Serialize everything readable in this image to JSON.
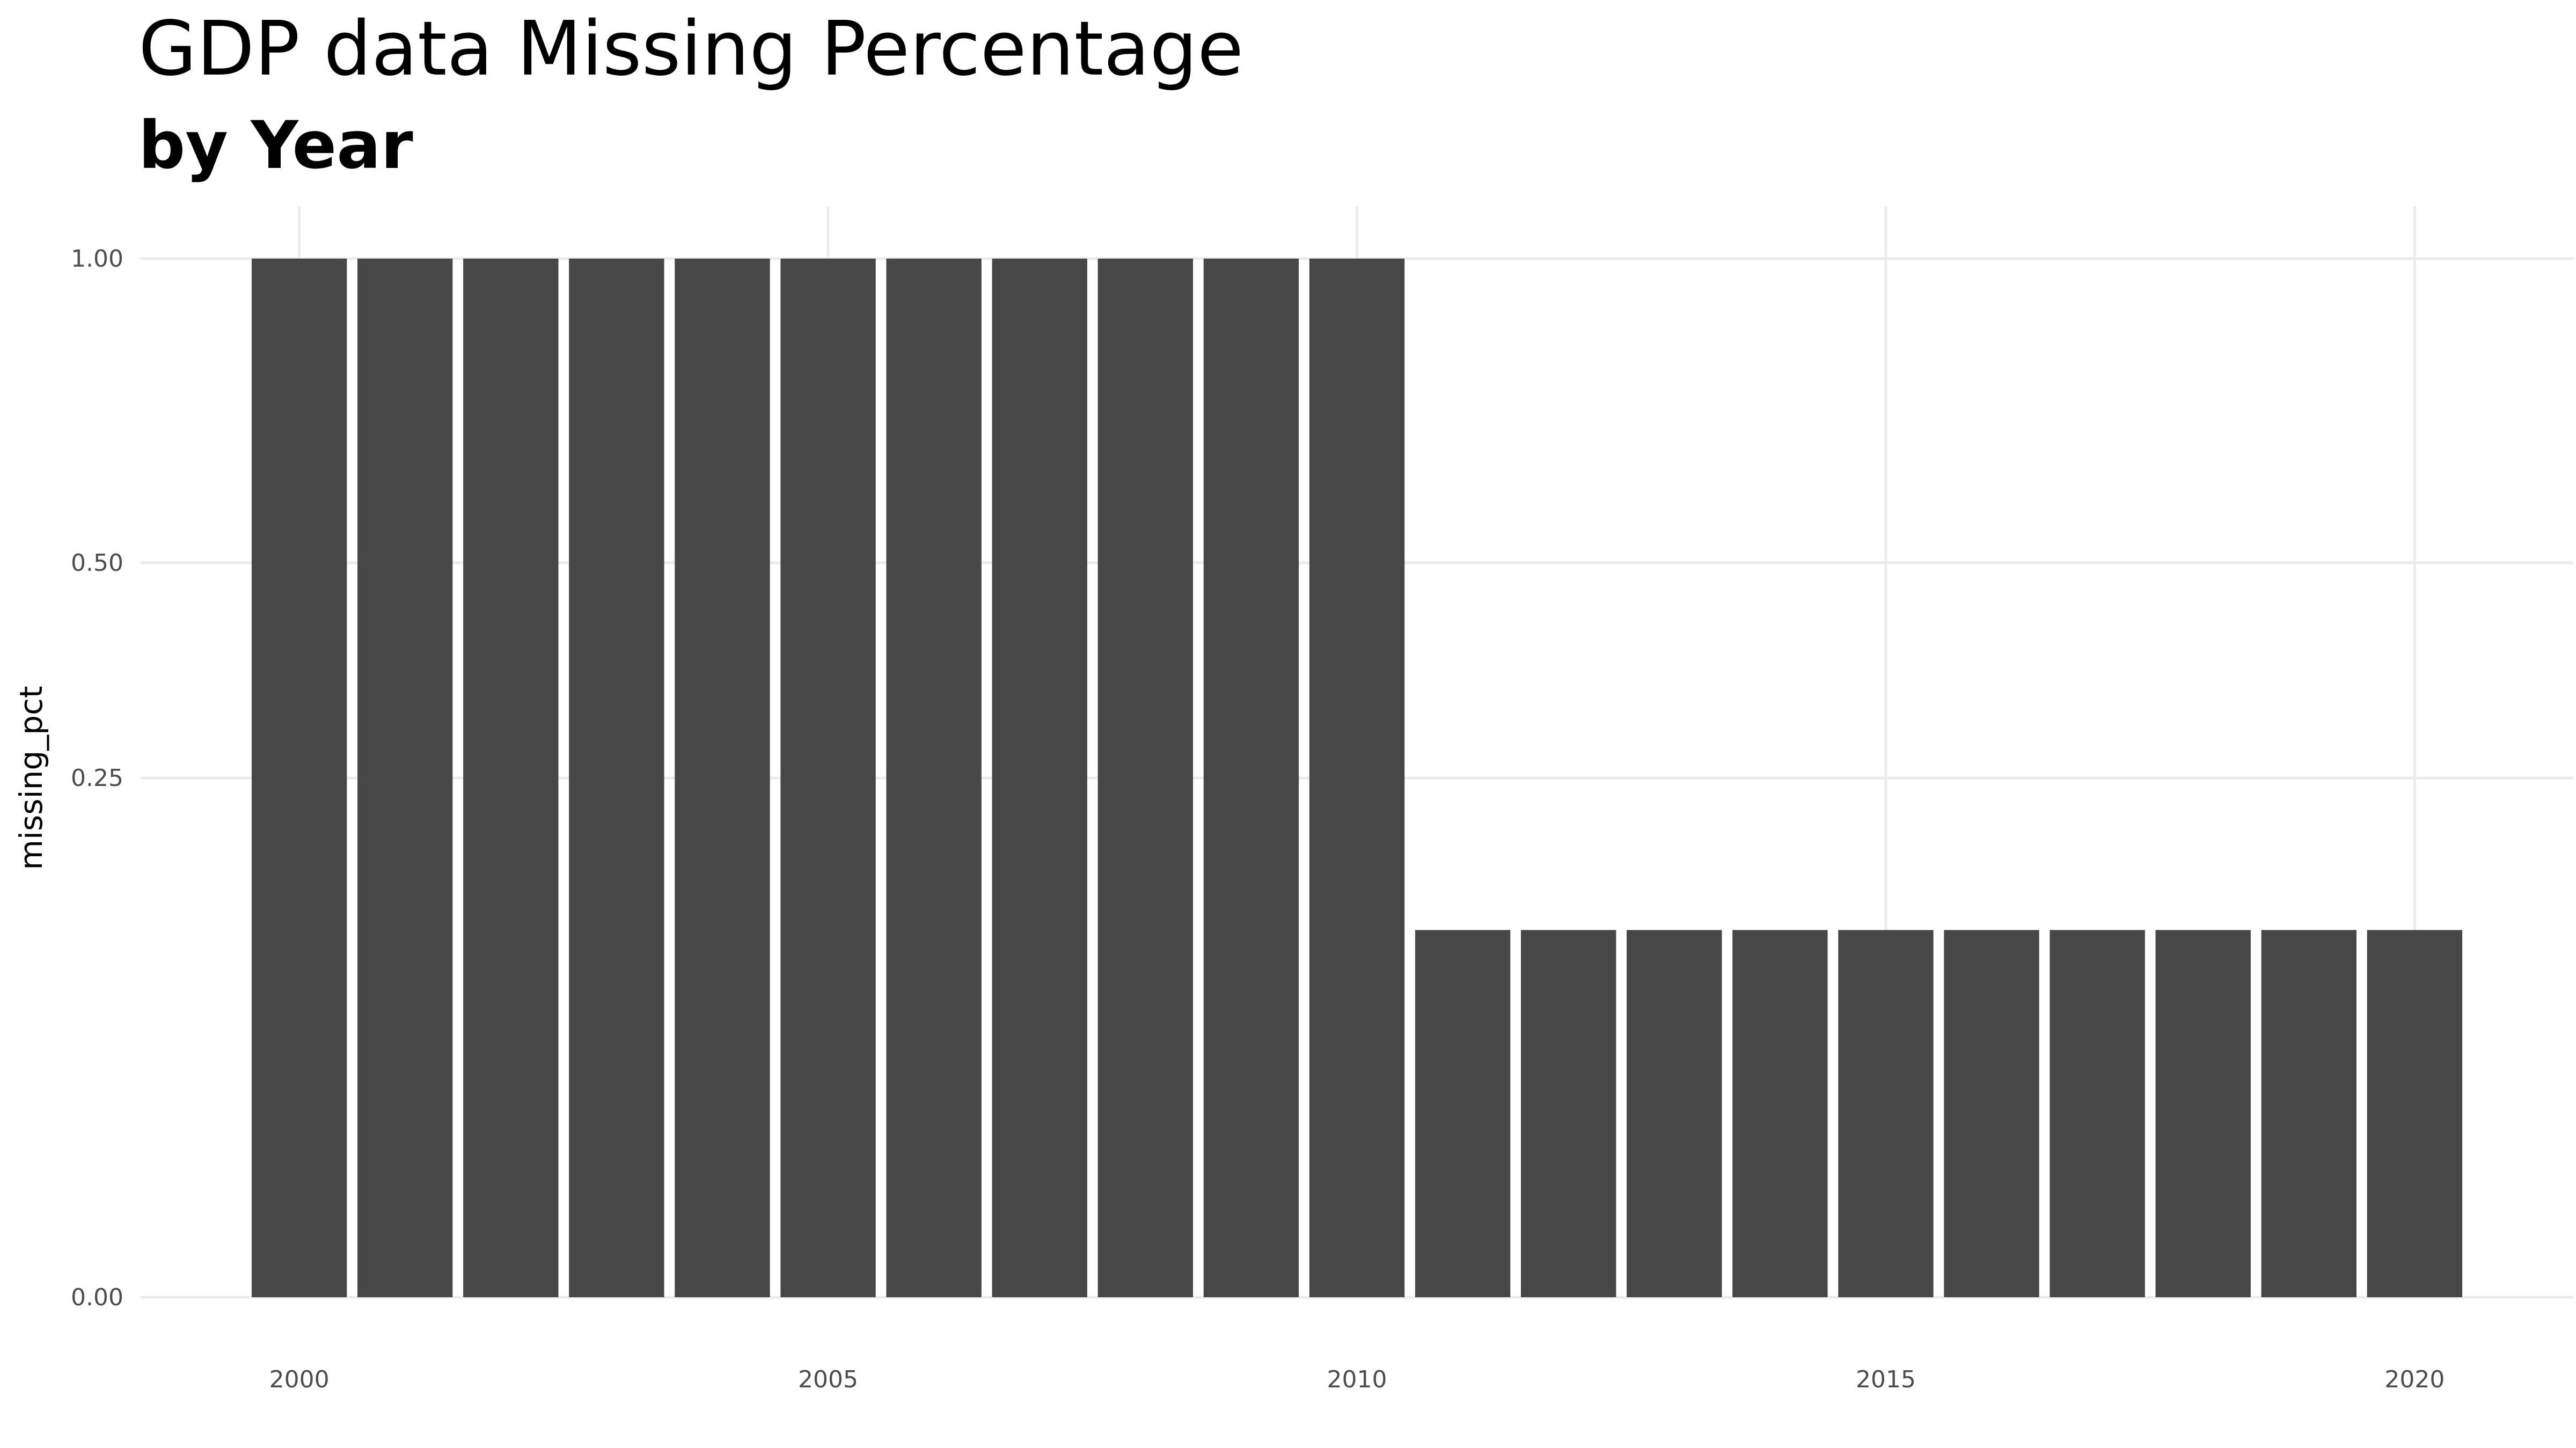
{
  "chart_data": {
    "type": "bar",
    "title": "GDP data Missing Percentage",
    "subtitle": "by Year",
    "xlabel": "",
    "ylabel": "missing_pct",
    "x": [
      2000,
      2001,
      2002,
      2003,
      2004,
      2005,
      2006,
      2007,
      2008,
      2009,
      2010,
      2011,
      2012,
      2013,
      2014,
      2015,
      2016,
      2017,
      2018,
      2019,
      2020
    ],
    "values": [
      1.0,
      1.0,
      1.0,
      1.0,
      1.0,
      1.0,
      1.0,
      1.0,
      1.0,
      1.0,
      1.0,
      0.125,
      0.125,
      0.125,
      0.125,
      0.125,
      0.125,
      0.125,
      0.125,
      0.125,
      0.125
    ],
    "xticks": [
      2000,
      2005,
      2010,
      2015,
      2020
    ],
    "yticks": [
      "0.00",
      "0.25",
      "0.50",
      "1.00"
    ],
    "ytick_values": [
      0,
      0.25,
      0.5,
      1.0
    ],
    "ylim": [
      0,
      1.05
    ],
    "xlim": [
      1998.5,
      2021.5
    ],
    "scale": "sqrt",
    "grid": true,
    "legend": "none",
    "bar_color": "#474747",
    "grid_color": "#ebebeb"
  }
}
